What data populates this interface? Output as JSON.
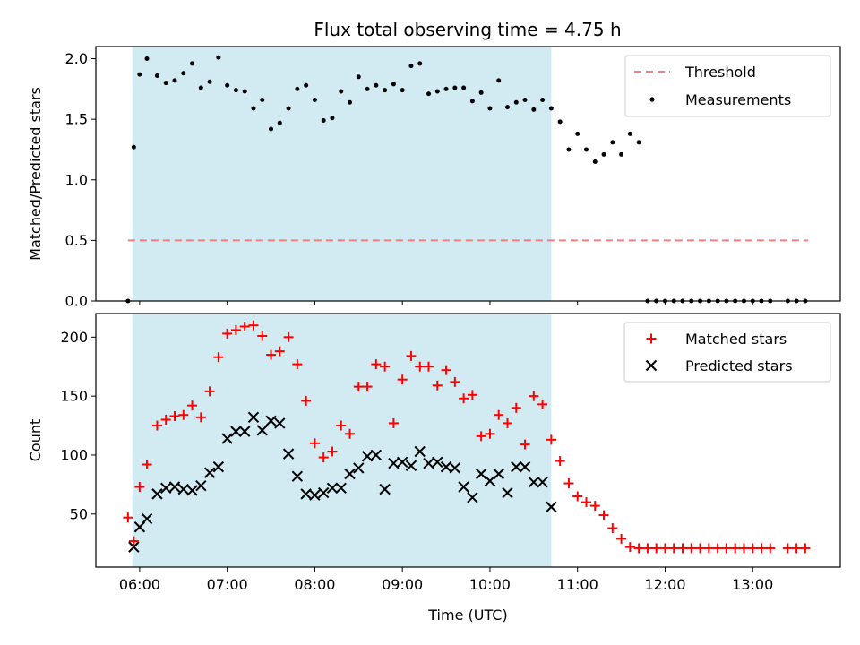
{
  "title": "Flux total observing time = 4.75 h",
  "xlabel": "Time (UTC)",
  "colors": {
    "shade": "#add8e6",
    "threshold": "#f08080",
    "measurement": "#000000",
    "matched": "#ff0000",
    "predicted": "#000000"
  },
  "x_tick_labels": [
    "06:00",
    "07:00",
    "08:00",
    "09:00",
    "10:00",
    "11:00",
    "12:00",
    "13:00"
  ],
  "chart_data": [
    {
      "type": "scatter",
      "ylabel": "Matched/Predicted stars",
      "ylim": [
        0,
        2.1
      ],
      "y_ticks": [
        0.0,
        0.5,
        1.0,
        1.5,
        2.0
      ],
      "y_tick_labels": [
        "0.0",
        "0.5",
        "1.0",
        "1.5",
        "2.0"
      ],
      "xlim": [
        "05:30",
        "14:00"
      ],
      "shaded_interval": [
        "05:55",
        "10:42"
      ],
      "legend": {
        "position": "top-right",
        "entries": [
          "Threshold",
          "Measurements"
        ]
      },
      "threshold": {
        "name": "Threshold",
        "value": 0.5,
        "x_range": [
          "05:52",
          "13:38"
        ],
        "style": "dashed"
      },
      "series": [
        {
          "name": "Measurements",
          "marker": "dot",
          "x": [
            "05:52",
            "05:56",
            "06:00",
            "06:05",
            "06:12",
            "06:18",
            "06:24",
            "06:30",
            "06:36",
            "06:42",
            "06:48",
            "06:54",
            "07:00",
            "07:06",
            "07:12",
            "07:18",
            "07:24",
            "07:30",
            "07:36",
            "07:42",
            "07:48",
            "07:54",
            "08:00",
            "08:06",
            "08:12",
            "08:18",
            "08:24",
            "08:30",
            "08:36",
            "08:42",
            "08:48",
            "08:54",
            "09:00",
            "09:06",
            "09:12",
            "09:18",
            "09:24",
            "09:30",
            "09:36",
            "09:42",
            "09:48",
            "09:54",
            "10:00",
            "10:06",
            "10:12",
            "10:18",
            "10:24",
            "10:30",
            "10:36",
            "10:42",
            "10:48",
            "10:54",
            "11:00",
            "11:06",
            "11:12",
            "11:18",
            "11:24",
            "11:30",
            "11:36",
            "11:42",
            "11:48",
            "11:54",
            "12:00",
            "12:06",
            "12:12",
            "12:18",
            "12:24",
            "12:30",
            "12:36",
            "12:42",
            "12:48",
            "12:54",
            "13:00",
            "13:06",
            "13:12",
            "13:24",
            "13:30",
            "13:36"
          ],
          "y": [
            0.0,
            1.27,
            1.87,
            2.0,
            1.86,
            1.8,
            1.82,
            1.88,
            1.96,
            1.76,
            1.81,
            2.01,
            1.78,
            1.74,
            1.73,
            1.59,
            1.66,
            1.42,
            1.47,
            1.59,
            1.75,
            1.78,
            1.66,
            1.49,
            1.51,
            1.73,
            1.64,
            1.85,
            1.75,
            1.78,
            1.74,
            1.79,
            1.74,
            1.94,
            1.96,
            1.71,
            1.73,
            1.75,
            1.76,
            1.76,
            1.65,
            1.72,
            1.59,
            1.82,
            1.6,
            1.64,
            1.66,
            1.58,
            1.66,
            1.59,
            1.48,
            1.25,
            1.38,
            1.25,
            1.15,
            1.21,
            1.31,
            1.21,
            1.38,
            1.31,
            0.0,
            0.0,
            0.0,
            0.0,
            0.0,
            0.0,
            0.0,
            0.0,
            0.0,
            0.0,
            0.0,
            0.0,
            0.0,
            0.0,
            0.0,
            0.0,
            0.0,
            0.0
          ]
        }
      ]
    },
    {
      "type": "scatter",
      "ylabel": "Count",
      "ylim": [
        5,
        220
      ],
      "y_ticks": [
        50,
        100,
        150,
        200
      ],
      "y_tick_labels": [
        "50",
        "100",
        "150",
        "200"
      ],
      "xlim": [
        "05:30",
        "14:00"
      ],
      "shaded_interval": [
        "05:55",
        "10:42"
      ],
      "legend": {
        "position": "top-right",
        "entries": [
          "Matched stars",
          "Predicted stars"
        ]
      },
      "series": [
        {
          "name": "Matched stars",
          "marker": "plus",
          "x": [
            "05:52",
            "05:56",
            "06:00",
            "06:05",
            "06:12",
            "06:18",
            "06:24",
            "06:30",
            "06:36",
            "06:42",
            "06:48",
            "06:54",
            "07:00",
            "07:06",
            "07:12",
            "07:18",
            "07:24",
            "07:30",
            "07:36",
            "07:42",
            "07:48",
            "07:54",
            "08:00",
            "08:06",
            "08:12",
            "08:18",
            "08:24",
            "08:30",
            "08:36",
            "08:42",
            "08:48",
            "08:54",
            "09:00",
            "09:06",
            "09:12",
            "09:18",
            "09:24",
            "09:30",
            "09:36",
            "09:42",
            "09:48",
            "09:54",
            "10:00",
            "10:06",
            "10:12",
            "10:18",
            "10:24",
            "10:30",
            "10:36",
            "10:42",
            "10:48",
            "10:54",
            "11:00",
            "11:06",
            "11:12",
            "11:18",
            "11:24",
            "11:30",
            "11:36",
            "11:42",
            "11:48",
            "11:54",
            "12:00",
            "12:06",
            "12:12",
            "12:18",
            "12:24",
            "12:30",
            "12:36",
            "12:42",
            "12:48",
            "12:54",
            "13:00",
            "13:06",
            "13:12",
            "13:24",
            "13:30",
            "13:36"
          ],
          "y": [
            47,
            27,
            73,
            92,
            125,
            130,
            133,
            134,
            142,
            132,
            154,
            183,
            203,
            206,
            209,
            210,
            201,
            185,
            188,
            200,
            177,
            146,
            110,
            98,
            103,
            125,
            118,
            158,
            158,
            177,
            175,
            127,
            164,
            184,
            175,
            175,
            159,
            172,
            162,
            148,
            151,
            116,
            118,
            134,
            127,
            140,
            109,
            150,
            143,
            113,
            95,
            76,
            65,
            60,
            57,
            49,
            38,
            29,
            22,
            21,
            21,
            21,
            21,
            21,
            21,
            21,
            21,
            21,
            21,
            21,
            21,
            21,
            21,
            21,
            21,
            21,
            21,
            21
          ]
        },
        {
          "name": "Predicted stars",
          "marker": "x",
          "x": [
            "05:56",
            "06:00",
            "06:05",
            "06:12",
            "06:18",
            "06:24",
            "06:30",
            "06:36",
            "06:42",
            "06:48",
            "06:54",
            "07:00",
            "07:06",
            "07:12",
            "07:18",
            "07:24",
            "07:30",
            "07:36",
            "07:42",
            "07:48",
            "07:54",
            "08:00",
            "08:06",
            "08:12",
            "08:18",
            "08:24",
            "08:30",
            "08:36",
            "08:42",
            "08:48",
            "08:54",
            "09:00",
            "09:06",
            "09:12",
            "09:18",
            "09:24",
            "09:30",
            "09:36",
            "09:42",
            "09:48",
            "09:54",
            "10:00",
            "10:06",
            "10:12",
            "10:18",
            "10:24",
            "10:30",
            "10:36",
            "10:42"
          ],
          "y": [
            22,
            39,
            46,
            67,
            72,
            73,
            71,
            70,
            74,
            85,
            90,
            114,
            120,
            120,
            132,
            121,
            129,
            127,
            101,
            82,
            67,
            66,
            68,
            72,
            72,
            84,
            89,
            99,
            100,
            71,
            93,
            94,
            91,
            103,
            93,
            94,
            90,
            89,
            73,
            64,
            84,
            78,
            84,
            68,
            90,
            90,
            77,
            77,
            56
          ]
        }
      ]
    }
  ]
}
